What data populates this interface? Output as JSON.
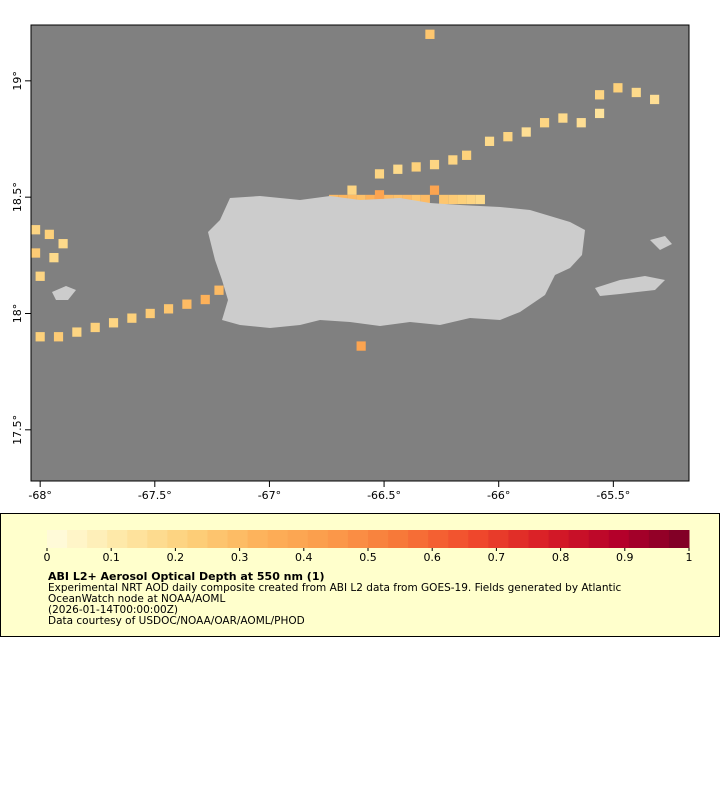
{
  "chart_data": {
    "type": "map",
    "xlim": [
      -68.04,
      -65.17
    ],
    "ylim": [
      17.28,
      19.24
    ],
    "xticks": [
      {
        "value": -68,
        "label": "-68°"
      },
      {
        "value": -67.5,
        "label": "-67.5°"
      },
      {
        "value": -67,
        "label": "-67°"
      },
      {
        "value": -66.5,
        "label": "-66.5°"
      },
      {
        "value": -66,
        "label": "-66°"
      },
      {
        "value": -65.5,
        "label": "-65.5°"
      }
    ],
    "yticks": [
      {
        "value": 19,
        "label": "19°"
      },
      {
        "value": 18.5,
        "label": "18.5°"
      },
      {
        "value": 18,
        "label": "18°"
      },
      {
        "value": 17.5,
        "label": "17.5°"
      }
    ],
    "colormap": [
      "#fffde0",
      "#fee9a8",
      "#fdd07a",
      "#fdb25a",
      "#fb9a4a",
      "#f77638",
      "#f0492c",
      "#d81d26",
      "#b5002a",
      "#7a0025"
    ],
    "colorbar_ticks": [
      0,
      0.1,
      0.2,
      0.3,
      0.4,
      0.5,
      0.6,
      0.7,
      0.8,
      0.9,
      1
    ],
    "cells": [
      {
        "lon": -66.72,
        "lat": 18.49,
        "value": 0.3
      },
      {
        "lon": -66.68,
        "lat": 18.49,
        "value": 0.32
      },
      {
        "lon": -66.64,
        "lat": 18.49,
        "value": 0.3
      },
      {
        "lon": -66.6,
        "lat": 18.49,
        "value": 0.28
      },
      {
        "lon": -66.56,
        "lat": 18.49,
        "value": 0.34
      },
      {
        "lon": -66.52,
        "lat": 18.51,
        "value": 0.4
      },
      {
        "lon": -66.48,
        "lat": 18.49,
        "value": 0.3
      },
      {
        "lon": -66.44,
        "lat": 18.49,
        "value": 0.28
      },
      {
        "lon": -66.4,
        "lat": 18.49,
        "value": 0.3
      },
      {
        "lon": -66.36,
        "lat": 18.49,
        "value": 0.26
      },
      {
        "lon": -66.32,
        "lat": 18.49,
        "value": 0.3
      },
      {
        "lon": -66.28,
        "lat": 18.53,
        "value": 0.4
      },
      {
        "lon": -66.24,
        "lat": 18.49,
        "value": 0.26
      },
      {
        "lon": -66.2,
        "lat": 18.49,
        "value": 0.24
      },
      {
        "lon": -66.16,
        "lat": 18.49,
        "value": 0.22
      },
      {
        "lon": -66.12,
        "lat": 18.49,
        "value": 0.2
      },
      {
        "lon": -66.08,
        "lat": 18.49,
        "value": 0.18
      },
      {
        "lon": -66.64,
        "lat": 18.53,
        "value": 0.2
      },
      {
        "lon": -66.52,
        "lat": 18.6,
        "value": 0.2
      },
      {
        "lon": -66.44,
        "lat": 18.62,
        "value": 0.18
      },
      {
        "lon": -66.36,
        "lat": 18.63,
        "value": 0.22
      },
      {
        "lon": -66.28,
        "lat": 18.64,
        "value": 0.2
      },
      {
        "lon": -66.2,
        "lat": 18.66,
        "value": 0.2
      },
      {
        "lon": -66.14,
        "lat": 18.68,
        "value": 0.22
      },
      {
        "lon": -66.04,
        "lat": 18.74,
        "value": 0.18
      },
      {
        "lon": -65.96,
        "lat": 18.76,
        "value": 0.2
      },
      {
        "lon": -65.88,
        "lat": 18.78,
        "value": 0.16
      },
      {
        "lon": -65.8,
        "lat": 18.82,
        "value": 0.2
      },
      {
        "lon": -65.72,
        "lat": 18.84,
        "value": 0.18
      },
      {
        "lon": -65.64,
        "lat": 18.82,
        "value": 0.16
      },
      {
        "lon": -65.56,
        "lat": 18.94,
        "value": 0.2
      },
      {
        "lon": -65.48,
        "lat": 18.97,
        "value": 0.22
      },
      {
        "lon": -65.4,
        "lat": 18.95,
        "value": 0.18
      },
      {
        "lon": -65.32,
        "lat": 18.92,
        "value": 0.16
      },
      {
        "lon": -65.56,
        "lat": 18.86,
        "value": 0.14
      },
      {
        "lon": -68.0,
        "lat": 17.9,
        "value": 0.22
      },
      {
        "lon": -67.92,
        "lat": 17.9,
        "value": 0.24
      },
      {
        "lon": -67.84,
        "lat": 17.92,
        "value": 0.2
      },
      {
        "lon": -67.76,
        "lat": 17.94,
        "value": 0.22
      },
      {
        "lon": -67.68,
        "lat": 17.96,
        "value": 0.2
      },
      {
        "lon": -67.6,
        "lat": 17.98,
        "value": 0.22
      },
      {
        "lon": -67.52,
        "lat": 18.0,
        "value": 0.24
      },
      {
        "lon": -67.44,
        "lat": 18.02,
        "value": 0.26
      },
      {
        "lon": -67.36,
        "lat": 18.04,
        "value": 0.3
      },
      {
        "lon": -67.28,
        "lat": 18.06,
        "value": 0.34
      },
      {
        "lon": -67.22,
        "lat": 18.1,
        "value": 0.3
      },
      {
        "lon": -68.02,
        "lat": 18.36,
        "value": 0.2
      },
      {
        "lon": -67.96,
        "lat": 18.34,
        "value": 0.22
      },
      {
        "lon": -68.02,
        "lat": 18.26,
        "value": 0.24
      },
      {
        "lon": -67.94,
        "lat": 18.24,
        "value": 0.18
      },
      {
        "lon": -68.0,
        "lat": 18.16,
        "value": 0.2
      },
      {
        "lon": -67.9,
        "lat": 18.3,
        "value": 0.18
      },
      {
        "lon": -66.6,
        "lat": 17.86,
        "value": 0.4
      },
      {
        "lon": -66.3,
        "lat": 19.2,
        "value": 0.26
      }
    ],
    "title": "ABI L2+ Aerosol Optical Depth at 550 nm (1)",
    "description": [
      "Experimental NRT AOD daily composite created from ABI L2 data from GOES-19. Fields generated by Atlantic",
      "OceanWatch node at NOAA/AOML",
      "(2026-01-14T00:00:00Z)",
      "Data courtesy of USDOC/NOAA/OAR/AOML/PHOD"
    ]
  }
}
